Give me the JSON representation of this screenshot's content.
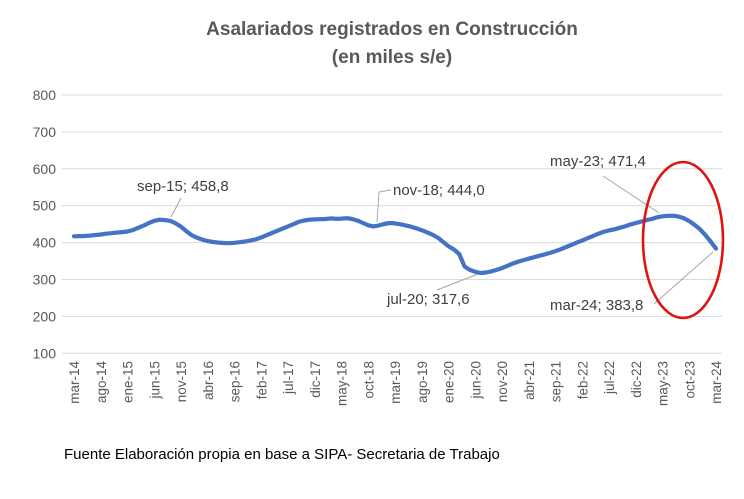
{
  "title": {
    "line1": "Asalariados registrados en Construcción",
    "line2": "(en miles s/e)"
  },
  "source": "Fuente Elaboración propia en base a SIPA- Secretaria de Trabajo",
  "colors": {
    "line": "#4472C4",
    "gridline": "#D9D9D9",
    "axis_text": "#595959",
    "title_text": "#595959",
    "annotation_text": "#3F3F3F",
    "leader_line": "#A6A6A6",
    "highlight_ellipse": "#E01313"
  },
  "chart_data": {
    "type": "line",
    "title": "Asalariados registrados en Construcción",
    "subtitle": "(en miles s/e)",
    "ylabel": "",
    "xlabel": "",
    "ylim": [
      100,
      800
    ],
    "ytick_step": 100,
    "yticks": [
      100,
      200,
      300,
      400,
      500,
      600,
      700,
      800
    ],
    "grid": "horizontal",
    "legend": "none",
    "x_start": "mar-14",
    "x_end": "mar-24",
    "x_n_points": 121,
    "x_tick_every_n_months": 5,
    "x_tick_labels": [
      "mar-14",
      "ago-14",
      "ene-15",
      "jun-15",
      "nov-15",
      "abr-16",
      "sep-16",
      "feb-17",
      "jul-17",
      "dic-17",
      "may-18",
      "oct-18",
      "mar-19",
      "ago-19",
      "ene-20",
      "jun-20",
      "nov-20",
      "abr-21",
      "sep-21",
      "feb-22",
      "jul-22",
      "dic-22",
      "may-23",
      "oct-23",
      "mar-24"
    ],
    "values": [
      417,
      417.5,
      418,
      419,
      420.5,
      422,
      424,
      425.5,
      427,
      428.5,
      430,
      434,
      440,
      446,
      453,
      459,
      462,
      461,
      458.8,
      452,
      443,
      431,
      420,
      413,
      408,
      404,
      401.5,
      400,
      399,
      398.5,
      399.5,
      401,
      403,
      406,
      409,
      414,
      420,
      426,
      432,
      438,
      444,
      450,
      456,
      460,
      462,
      463,
      463.5,
      464,
      465.5,
      464.5,
      465,
      466,
      464,
      459.5,
      453,
      447,
      444,
      446.5,
      450.5,
      453,
      452,
      449.5,
      446.5,
      443,
      438.5,
      433.5,
      428,
      421.5,
      413.5,
      402,
      390,
      381.5,
      369,
      335,
      326,
      321,
      317.6,
      319,
      322,
      326,
      331,
      337,
      343,
      348,
      352.5,
      356.5,
      360.5,
      364.5,
      368,
      372,
      377,
      382,
      388,
      394,
      400,
      406,
      412,
      418,
      424,
      429,
      433,
      436,
      440,
      444,
      449,
      453,
      457,
      461,
      464,
      468.5,
      471.4,
      472.5,
      473,
      470.5,
      466,
      458,
      448,
      436,
      421,
      403,
      383.8
    ],
    "annotations": [
      {
        "id": "sep15",
        "label": "sep-15; 458,8",
        "month": "sep-15",
        "month_index": 18,
        "value": 458.8
      },
      {
        "id": "nov18",
        "label": "nov-18; 444,0",
        "month": "nov-18",
        "month_index": 56,
        "value": 444.0
      },
      {
        "id": "may23",
        "label": "may-23; 471,4",
        "month": "may-23",
        "month_index": 110,
        "value": 471.4
      },
      {
        "id": "jul20",
        "label": "jul-20; 317,6",
        "month": "jul-20",
        "month_index": 76,
        "value": 317.6
      },
      {
        "id": "mar24",
        "label": "mar-24; 383,8",
        "month": "mar-24",
        "month_index": 120,
        "value": 383.8
      }
    ],
    "highlight": {
      "shape": "ellipse",
      "around_months": [
        "oct-23",
        "mar-24"
      ],
      "color": "#E01313"
    }
  }
}
